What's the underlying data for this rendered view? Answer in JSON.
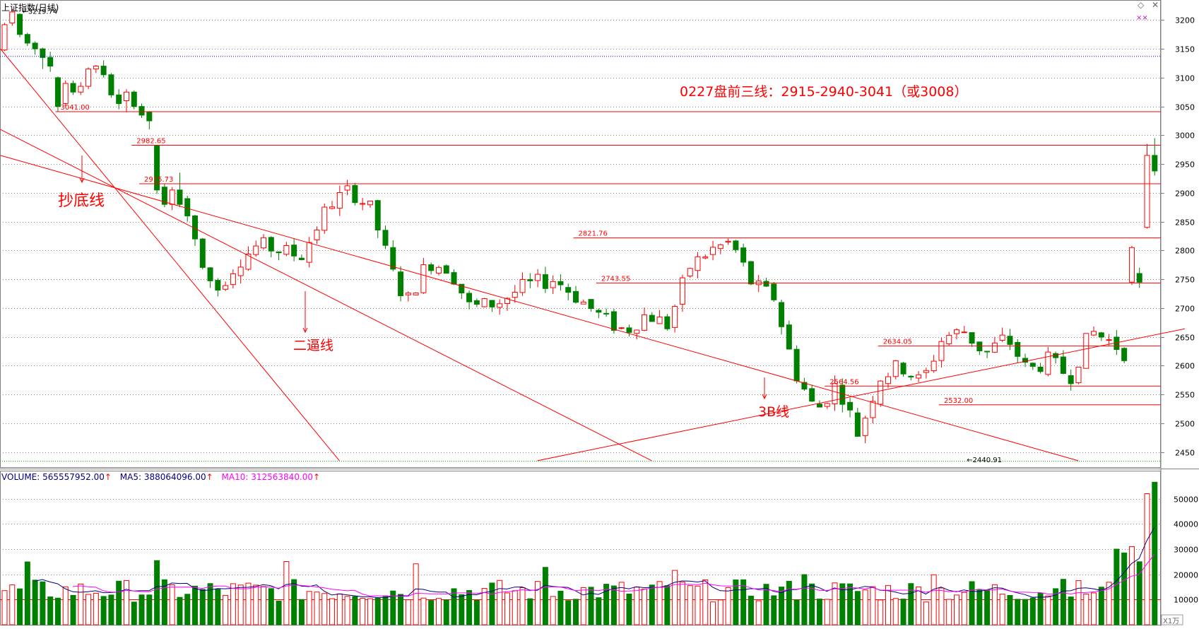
{
  "window": {
    "title": "上证指数(日线)",
    "corner_icons": [
      "diamond-icon",
      "close-icon"
    ],
    "corner_marker": "××"
  },
  "annotations": {
    "strategy_note": "0227盘前三线：2915-2940-3041（或3008）",
    "label_bottom_fishing": "抄底线",
    "label_second_force": "二逼线",
    "label_3b": "3B线"
  },
  "chart_data": [
    {
      "type": "candlestick",
      "title": "上证指数(日线)",
      "y_ticks": [
        2450,
        2500,
        2550,
        2600,
        2650,
        2700,
        2750,
        2800,
        2850,
        2900,
        2950,
        3000,
        3050,
        3100,
        3150,
        3200
      ],
      "ylim": [
        2425,
        3225
      ],
      "grid": true,
      "colors": {
        "up": "#ff0000",
        "down": "#008000",
        "line": "#ff0000",
        "guide": "#0000ff",
        "text": "#000000"
      },
      "price_labels": [
        {
          "text": "3219.74",
          "value": 3219.74,
          "bar": 2
        },
        {
          "text": "3041.00",
          "value": 3041.0,
          "bar": 7
        },
        {
          "text": "2982.65",
          "value": 2982.65,
          "bar": 17
        },
        {
          "text": "2915.73",
          "value": 2915.73,
          "bar": 18
        },
        {
          "text": "2821.76",
          "value": 2821.76,
          "bar": 75
        },
        {
          "text": "2743.55",
          "value": 2743.55,
          "bar": 78
        },
        {
          "text": "2634.05",
          "value": 2634.05,
          "bar": 115
        },
        {
          "text": "2564.56",
          "value": 2564.56,
          "bar": 108
        },
        {
          "text": "2532.00",
          "value": 2532.0,
          "bar": 123
        },
        {
          "text": "2440.91",
          "value": 2440.91,
          "bar": 126
        }
      ],
      "horizontal_levels": [
        {
          "value": 3041,
          "from_bar": 7,
          "style": "solid"
        },
        {
          "value": 2982.65,
          "from_bar": 17,
          "style": "solid"
        },
        {
          "value": 2915.73,
          "from_bar": 18,
          "style": "solid"
        },
        {
          "value": 2821.76,
          "from_bar": 75,
          "style": "solid"
        },
        {
          "value": 2743.55,
          "from_bar": 78,
          "style": "solid"
        },
        {
          "value": 2634.05,
          "from_bar": 115,
          "style": "solid"
        },
        {
          "value": 2564.56,
          "from_bar": 108,
          "style": "solid"
        },
        {
          "value": 2532.0,
          "from_bar": 123,
          "style": "solid"
        },
        {
          "value": 3137,
          "from_bar": 0,
          "style": "dotted-blue"
        },
        {
          "value": 2434,
          "from_bar": 0,
          "style": "dotted-green"
        }
      ],
      "trend_lines": [
        {
          "from": [
            -0.5,
            3150
          ],
          "to": [
            44,
            2435
          ]
        },
        {
          "from": [
            -0.5,
            3010
          ],
          "to": [
            85,
            2435
          ]
        },
        {
          "from": [
            -0.5,
            2965
          ],
          "to": [
            141,
            2435
          ]
        },
        {
          "from": [
            70,
            2435
          ],
          "to": [
            155,
            2664
          ]
        }
      ],
      "candles": [
        [
          3148,
          3192,
          3146,
          3195
        ],
        [
          3195,
          3214,
          3190,
          3219.74
        ],
        [
          3210,
          3175,
          3170,
          3212
        ],
        [
          3175,
          3160,
          3155,
          3178
        ],
        [
          3160,
          3150,
          3140,
          3163
        ],
        [
          3150,
          3135,
          3115,
          3152
        ],
        [
          3135,
          3120,
          3110,
          3145
        ],
        [
          3100,
          3050,
          3041,
          3102
        ],
        [
          3055,
          3090,
          3050,
          3095
        ],
        [
          3090,
          3075,
          3070,
          3095
        ],
        [
          3075,
          3085,
          3070,
          3092
        ],
        [
          3085,
          3115,
          3080,
          3118
        ],
        [
          3115,
          3120,
          3108,
          3122
        ],
        [
          3120,
          3105,
          3100,
          3130
        ],
        [
          3105,
          3070,
          3065,
          3108
        ],
        [
          3070,
          3055,
          3045,
          3080
        ],
        [
          3060,
          3075,
          3040,
          3080
        ],
        [
          3075,
          3050,
          3045,
          3078
        ],
        [
          3050,
          3035,
          3030,
          3055
        ],
        [
          3040,
          3025,
          3010,
          3042
        ],
        [
          2982,
          2905,
          2898,
          2982.65
        ],
        [
          2910,
          2880,
          2875,
          2915.73
        ],
        [
          2880,
          2905,
          2870,
          2910
        ],
        [
          2905,
          2880,
          2875,
          2935
        ],
        [
          2890,
          2860,
          2850,
          2895
        ],
        [
          2860,
          2820,
          2808,
          2862
        ]
      ],
      "y_axis_side": "right"
    },
    {
      "type": "bar",
      "title": "VOLUME",
      "indicators": [
        {
          "name": "VOLUME",
          "text": "VOLUME: 565557952.00",
          "color": "#000080"
        },
        {
          "name": "MA5",
          "text": "MA5: 388064096.00",
          "color": "#000080"
        },
        {
          "name": "MA10",
          "text": "MA10: 312563840.00",
          "color": "#ff00ff"
        }
      ],
      "indicator_arrow": "↑",
      "unit_label": "X1万",
      "y_ticks": [
        10000,
        20000,
        30000,
        40000,
        50000
      ],
      "ylim": [
        0,
        60000
      ],
      "last_volume_value": 56555.7952,
      "grid": true
    }
  ],
  "series_source": {
    "note": ""
  }
}
